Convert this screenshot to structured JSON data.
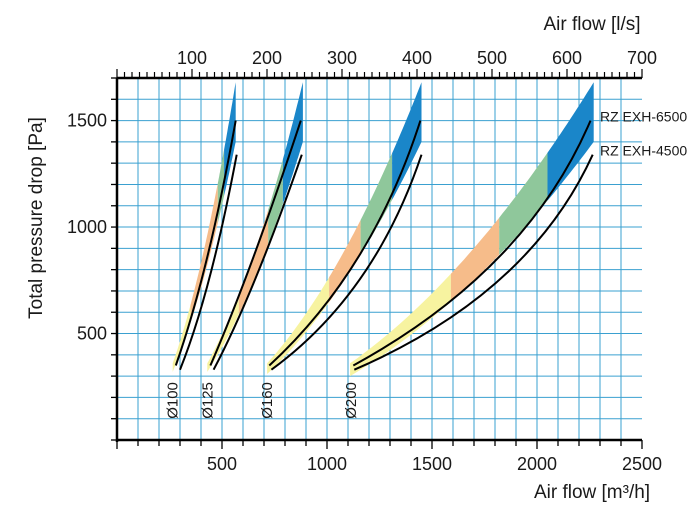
{
  "chart_data": {
    "type": "line",
    "title": "",
    "xlabel": "Air flow [m³/h]",
    "x2label": "Air flow [l/s]",
    "ylabel": "Total pressure drop [Pa]",
    "xlim": [
      0,
      2500
    ],
    "x2lim": [
      0,
      700
    ],
    "ylim": [
      0,
      1700
    ],
    "x_ticks": [
      "500",
      "1000",
      "1500",
      "2000",
      "2500"
    ],
    "x2_ticks": [
      "100",
      "200",
      "300",
      "400",
      "500",
      "600",
      "700"
    ],
    "y_ticks": [
      "500",
      "1000",
      "1500"
    ],
    "grid": true,
    "colors": {
      "grid": "#3aa0d0",
      "yellow": "#f7f3a0",
      "orange": "#f6bc8a",
      "green": "#8fc79b",
      "blue": "#1a86c9",
      "curve": "#000000"
    },
    "series": [
      {
        "name": "RZ EXH-6500",
        "diameter": "Ø100",
        "x": [
          280,
          430,
          565
        ],
        "y": [
          350,
          860,
          1500
        ]
      },
      {
        "name": "RZ EXH-4500",
        "diameter": "Ø100",
        "x": [
          300,
          440,
          570
        ],
        "y": [
          330,
          760,
          1340
        ]
      },
      {
        "name": "RZ EXH-6500",
        "diameter": "Ø125",
        "x": [
          445,
          650,
          875
        ],
        "y": [
          350,
          860,
          1500
        ]
      },
      {
        "name": "RZ EXH-4500",
        "diameter": "Ø125",
        "x": [
          460,
          660,
          880
        ],
        "y": [
          330,
          760,
          1340
        ]
      },
      {
        "name": "RZ EXH-6500",
        "diameter": "Ø160",
        "x": [
          725,
          1150,
          1445
        ],
        "y": [
          350,
          860,
          1500
        ]
      },
      {
        "name": "RZ EXH-4500",
        "diameter": "Ø160",
        "x": [
          735,
          1160,
          1450
        ],
        "y": [
          330,
          760,
          1340
        ]
      },
      {
        "name": "RZ EXH-6500",
        "diameter": "Ø200",
        "x": [
          1125,
          1820,
          2255
        ],
        "y": [
          350,
          860,
          1500
        ]
      },
      {
        "name": "RZ EXH-4500",
        "diameter": "Ø200",
        "x": [
          1130,
          1830,
          2265
        ],
        "y": [
          330,
          760,
          1340
        ]
      }
    ],
    "bands": [
      {
        "diameter": "Ø100",
        "x_start": 265,
        "x_end": 565,
        "y_low": [
          320,
          1400
        ],
        "y_high": [
          360,
          1680
        ],
        "breaks": [
          350,
          480,
          510
        ]
      },
      {
        "diameter": "Ø125",
        "x_start": 430,
        "x_end": 885,
        "y_low": [
          320,
          1400
        ],
        "y_high": [
          360,
          1680
        ],
        "breaks": [
          580,
          720,
          790
        ]
      },
      {
        "diameter": "Ø160",
        "x_start": 715,
        "x_end": 1450,
        "y_low": [
          310,
          1400
        ],
        "y_high": [
          360,
          1680
        ],
        "breaks": [
          1010,
          1160,
          1310
        ]
      },
      {
        "diameter": "Ø200",
        "x_start": 1110,
        "x_end": 2270,
        "y_low": [
          300,
          1400
        ],
        "y_high": [
          360,
          1680
        ],
        "breaks": [
          1590,
          1820,
          2050
        ]
      }
    ],
    "diameter_labels": [
      "Ø100",
      "Ø125",
      "Ø160",
      "Ø200"
    ],
    "curve_labels": [
      "RZ EXH-6500",
      "RZ EXH-4500"
    ]
  }
}
